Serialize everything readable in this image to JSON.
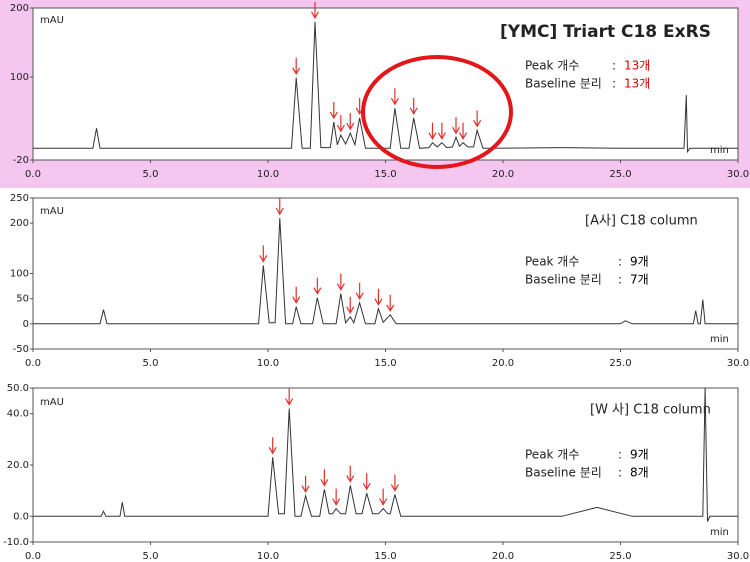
{
  "chart_data": [
    {
      "type": "line",
      "title": "[YMC] Triart C18 ExRS",
      "y_label": "mAU",
      "x_label": "min",
      "color": "#333333",
      "background": "#f4c6f0",
      "note_value_color": "#e00000",
      "marker_color": "#e0302a",
      "notes": [
        {
          "label": "Peak 개수",
          "sep": ":",
          "value": "13개"
        },
        {
          "label": "Baseline 분리",
          "sep": ":",
          "value": "13개"
        }
      ],
      "x": [
        0,
        2.55,
        2.7,
        2.85,
        11.0,
        11.2,
        11.45,
        11.8,
        12.0,
        12.25,
        12.65,
        12.8,
        12.95,
        13.1,
        13.3,
        13.5,
        13.7,
        13.9,
        14.15,
        15.2,
        15.4,
        15.65,
        16.0,
        16.2,
        16.45,
        16.85,
        17.0,
        17.2,
        17.4,
        17.6,
        17.85,
        18.0,
        18.15,
        18.3,
        18.5,
        18.75,
        18.9,
        19.15,
        22.5,
        25,
        27.7,
        27.8,
        27.85,
        27.95,
        30
      ],
      "values": [
        -3,
        -3,
        26,
        -3,
        -3,
        99,
        -3,
        -3,
        180,
        -2,
        -2,
        35,
        2,
        16,
        3,
        19,
        2,
        41,
        -3,
        -3,
        55,
        -3,
        -3,
        41,
        -3,
        -2,
        5,
        -1,
        5,
        -2,
        -1,
        13,
        0,
        5,
        -1,
        -1,
        23,
        -3,
        -2,
        -3,
        -3,
        74,
        -8,
        -3,
        -3
      ],
      "peak_markers": [
        11.2,
        12.0,
        12.8,
        13.1,
        13.5,
        13.9,
        15.4,
        16.2,
        17.0,
        17.4,
        18.0,
        18.3,
        18.9
      ],
      "xlim": [
        0,
        30
      ],
      "xticks": [
        {
          "value": 0,
          "label": "0.0"
        },
        {
          "value": 5,
          "label": "5.0"
        },
        {
          "value": 10,
          "label": "10.0"
        },
        {
          "value": 15,
          "label": "15.0"
        },
        {
          "value": 20,
          "label": "20.0"
        },
        {
          "value": 25,
          "label": "25.0"
        },
        {
          "value": 30,
          "label": "30.0"
        }
      ],
      "ylim": [
        -20,
        200
      ],
      "yticks": [
        -20,
        100,
        200
      ]
    },
    {
      "type": "line",
      "title": "[A사] C18 column",
      "y_label": "mAU",
      "x_label": "min",
      "color": "#333333",
      "background": "#ffffff",
      "note_value_color": "#000000",
      "marker_color": "#e0302a",
      "notes": [
        {
          "label": "Peak 개수",
          "sep": ":",
          "value": "9개"
        },
        {
          "label": "Baseline 분리",
          "sep": ":",
          "value": "7개"
        }
      ],
      "x": [
        0,
        2.85,
        3.0,
        3.15,
        9.6,
        9.8,
        10.05,
        10.3,
        10.5,
        10.75,
        11.05,
        11.2,
        11.4,
        11.9,
        12.1,
        12.35,
        12.9,
        13.1,
        13.3,
        13.5,
        13.65,
        13.9,
        14.15,
        14.55,
        14.7,
        14.9,
        15.2,
        15.45,
        25.0,
        25.2,
        25.5,
        28.1,
        28.2,
        28.3,
        28.4,
        28.5,
        28.6,
        30
      ],
      "values": [
        0,
        0,
        28,
        0,
        0,
        116,
        2,
        2,
        210,
        0,
        0,
        34,
        0,
        0,
        52,
        0,
        0,
        60,
        2,
        14,
        2,
        42,
        0,
        0,
        30,
        3,
        18,
        0,
        0,
        6,
        0,
        0,
        26,
        0,
        0,
        48,
        0,
        0
      ],
      "peak_markers": [
        9.8,
        10.5,
        11.2,
        12.1,
        13.1,
        13.5,
        13.9,
        14.7,
        15.2
      ],
      "xlim": [
        0,
        30
      ],
      "xticks": [
        {
          "value": 0,
          "label": "0.0"
        },
        {
          "value": 5,
          "label": "5.0"
        },
        {
          "value": 10,
          "label": "10.0"
        },
        {
          "value": 15,
          "label": "15.0"
        },
        {
          "value": 20,
          "label": "20.0"
        },
        {
          "value": 25,
          "label": "25.0"
        },
        {
          "value": 30,
          "label": "30.0"
        }
      ],
      "ylim": [
        -50,
        250
      ],
      "yticks": [
        -50,
        0,
        50,
        100,
        200,
        250
      ]
    },
    {
      "type": "line",
      "title": "[W 사] C18 column",
      "y_label": "mAU",
      "x_label": "min",
      "color": "#333333",
      "background": "#ffffff",
      "note_value_color": "#000000",
      "marker_color": "#e0302a",
      "notes": [
        {
          "label": "Peak 개수",
          "sep": ":",
          "value": "9개"
        },
        {
          "label": "Baseline 분리",
          "sep": ":",
          "value": "8개"
        }
      ],
      "x": [
        0,
        2.9,
        3.0,
        3.1,
        3.7,
        3.8,
        3.9,
        10.0,
        10.2,
        10.45,
        10.7,
        10.9,
        11.15,
        11.4,
        11.6,
        11.85,
        12.2,
        12.4,
        12.6,
        12.75,
        12.9,
        13.1,
        13.3,
        13.5,
        13.75,
        14.0,
        14.2,
        14.45,
        14.7,
        14.9,
        15.1,
        15.2,
        15.4,
        15.65,
        22.5,
        24.0,
        25.5,
        28.5,
        28.6,
        28.7,
        28.8,
        30
      ],
      "values": [
        0,
        0,
        2,
        0,
        0,
        5.5,
        0,
        0,
        23,
        1,
        1,
        42,
        0,
        0,
        8,
        0,
        0,
        10.5,
        1,
        1,
        3,
        1,
        1,
        12,
        1,
        1,
        9,
        1,
        1,
        3,
        1,
        1,
        8.5,
        0,
        0,
        3.5,
        0,
        0,
        50,
        -2,
        0,
        0
      ],
      "peak_markers": [
        10.2,
        10.9,
        11.6,
        12.4,
        12.9,
        13.5,
        14.2,
        14.9,
        15.4
      ],
      "xlim": [
        0,
        30
      ],
      "xticks": [
        {
          "value": 0,
          "label": "0.0"
        },
        {
          "value": 5,
          "label": "5.0"
        },
        {
          "value": 10,
          "label": "10.0"
        },
        {
          "value": 15,
          "label": "15.0"
        },
        {
          "value": 20,
          "label": "20.0"
        },
        {
          "value": 25,
          "label": "25.0"
        },
        {
          "value": 30,
          "label": "30.0"
        }
      ],
      "ylim": [
        {
          "value": -10,
          "label": "-10.0"
        },
        {
          "value": 50,
          "label": "50.0"
        }
      ],
      "yticks": [
        {
          "value": -10,
          "label": "-10.0"
        },
        {
          "value": 0,
          "label": "0.0"
        },
        {
          "value": 20,
          "label": "20.0"
        },
        {
          "value": 40,
          "label": "40.0"
        },
        {
          "value": 50,
          "label": "50.0"
        }
      ]
    }
  ]
}
